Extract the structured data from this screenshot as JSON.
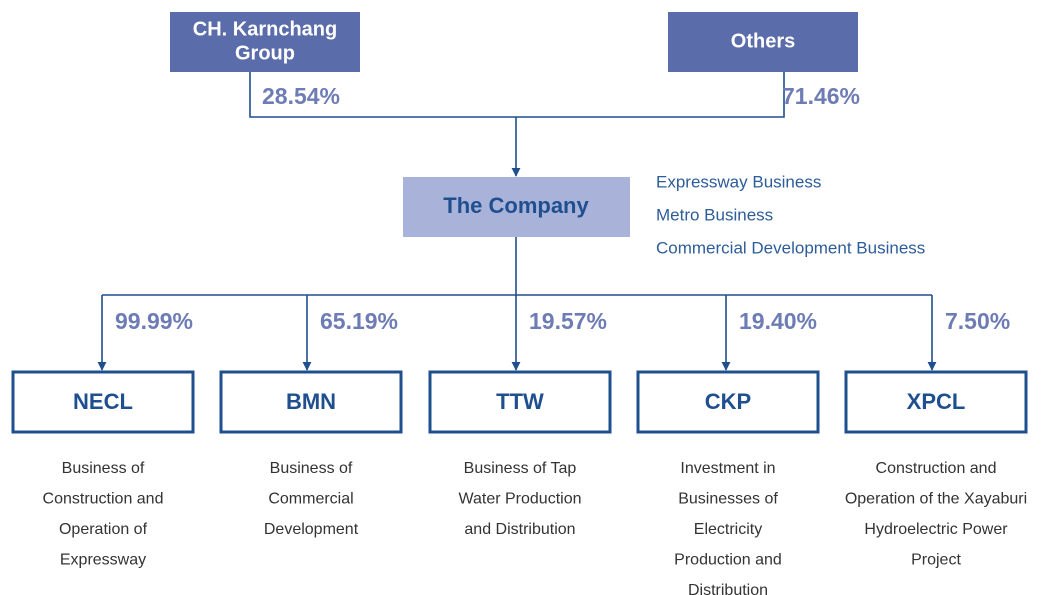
{
  "shareholders": [
    {
      "label_lines": [
        "CH. Karnchang",
        "Group"
      ],
      "share": "28.54%"
    },
    {
      "label_lines": [
        "Others"
      ],
      "share": "71.46%"
    }
  ],
  "company": {
    "label": "The Company",
    "businesses": [
      "Expressway Business",
      "Metro Business",
      "Commercial Development Business"
    ]
  },
  "subsidiaries": [
    {
      "label": "NECL",
      "share": "99.99%",
      "description": [
        "Business of",
        "Construction and",
        "Operation of",
        "Expressway"
      ]
    },
    {
      "label": "BMN",
      "share": "65.19%",
      "description": [
        "Business of",
        "Commercial",
        "Development"
      ]
    },
    {
      "label": "TTW",
      "share": "19.57%",
      "description": [
        "Business of Tap",
        "Water Production",
        "and Distribution"
      ]
    },
    {
      "label": "CKP",
      "share": "19.40%",
      "description": [
        "Investment in",
        "Businesses of",
        "Electricity",
        "Production and",
        "Distribution"
      ]
    },
    {
      "label": "XPCL",
      "share": "7.50%",
      "description": [
        "Construction and",
        "Operation of the Xayaburi",
        "Hydroelectric Power",
        "Project"
      ]
    }
  ]
}
